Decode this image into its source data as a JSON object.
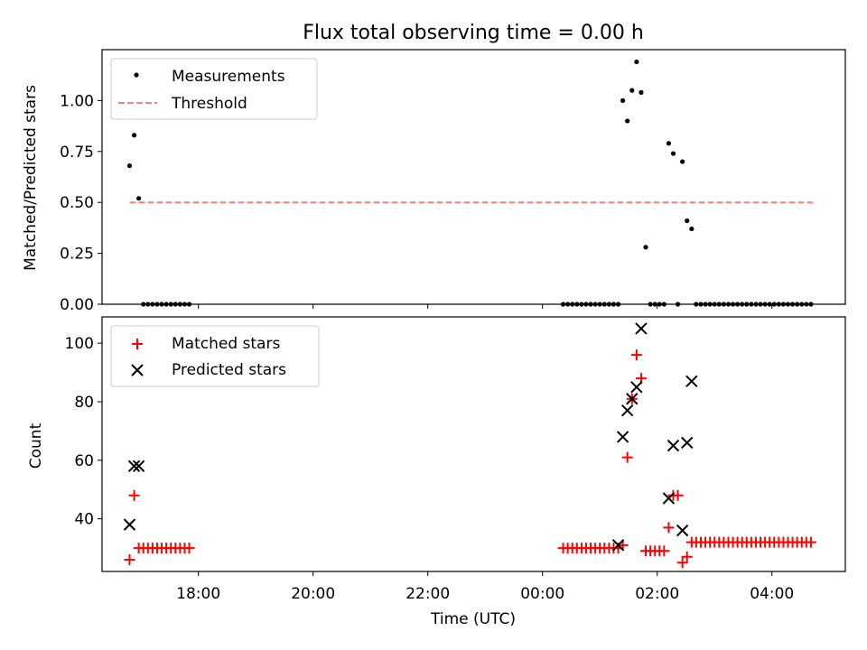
{
  "title": "Flux total observing time = 0.00 h",
  "xlabel": "Time (UTC)",
  "x_ticks": [
    "18:00",
    "20:00",
    "22:00",
    "00:00",
    "02:00",
    "04:00"
  ],
  "x_tick_hours": [
    18,
    20,
    22,
    24,
    26,
    28
  ],
  "x_range_hours": [
    16.32,
    29.28
  ],
  "colors": {
    "measurement": "#000000",
    "threshold": "#ff7f7f",
    "matched": "#ff0000",
    "predicted": "#000000"
  },
  "chart_data": [
    {
      "type": "scatter",
      "panel": "top",
      "ylabel": "Matched/Predicted stars",
      "ylim": [
        0,
        1.25
      ],
      "y_ticks": [
        "0.00",
        "0.25",
        "0.50",
        "0.75",
        "1.00"
      ],
      "y_tick_values": [
        0,
        0.25,
        0.5,
        0.75,
        1.0
      ],
      "legend": {
        "placement": "top-left",
        "entries": [
          "Measurements",
          "Threshold"
        ]
      },
      "threshold": {
        "name": "Threshold",
        "y": 0.5,
        "x": [
          16.8,
          28.72
        ]
      },
      "series": [
        {
          "name": "Measurements",
          "marker": "dot",
          "x": [
            16.8,
            16.88,
            16.96,
            17.04,
            17.12,
            17.2,
            17.28,
            17.36,
            17.44,
            17.52,
            17.6,
            17.68,
            17.76,
            17.84,
            24.36,
            24.44,
            24.52,
            24.6,
            24.68,
            24.76,
            24.84,
            24.92,
            25.0,
            25.08,
            25.16,
            25.24,
            25.32,
            25.4,
            25.48,
            25.56,
            25.64,
            25.72,
            25.8,
            25.88,
            25.96,
            26.04,
            26.12,
            26.2,
            26.28,
            26.36,
            26.44,
            26.52,
            26.6,
            26.68,
            26.76,
            26.84,
            26.92,
            27.0,
            27.08,
            27.16,
            27.24,
            27.32,
            27.4,
            27.48,
            27.56,
            27.64,
            27.72,
            27.8,
            27.88,
            27.96,
            28.04,
            28.12,
            28.2,
            28.28,
            28.36,
            28.44,
            28.52,
            28.6,
            28.68
          ],
          "y": [
            0.68,
            0.83,
            0.52,
            0,
            0,
            0,
            0,
            0,
            0,
            0,
            0,
            0,
            0,
            0,
            0,
            0,
            0,
            0,
            0,
            0,
            0,
            0,
            0,
            0,
            0,
            0,
            0,
            1.0,
            0.9,
            1.05,
            1.19,
            1.04,
            0.28,
            0,
            0,
            0,
            0,
            0.79,
            0.74,
            0,
            0.7,
            0.41,
            0.37,
            0,
            0,
            0,
            0,
            0,
            0,
            0,
            0,
            0,
            0,
            0,
            0,
            0,
            0,
            0,
            0,
            0,
            0,
            0,
            0,
            0,
            0,
            0,
            0,
            0,
            0
          ]
        }
      ]
    },
    {
      "type": "scatter",
      "panel": "bottom",
      "ylabel": "Count",
      "ylim": [
        22,
        109
      ],
      "y_ticks": [
        "40",
        "60",
        "80",
        "100"
      ],
      "y_tick_values": [
        40,
        60,
        80,
        100
      ],
      "legend": {
        "placement": "top-left",
        "entries": [
          "Matched stars",
          "Predicted stars"
        ]
      },
      "series": [
        {
          "name": "Matched stars",
          "marker": "plus",
          "x": [
            16.8,
            16.88,
            16.96,
            17.04,
            17.12,
            17.2,
            17.28,
            17.36,
            17.44,
            17.52,
            17.6,
            17.68,
            17.76,
            17.84,
            24.36,
            24.44,
            24.52,
            24.6,
            24.68,
            24.76,
            24.84,
            24.92,
            25.0,
            25.08,
            25.16,
            25.24,
            25.32,
            25.4,
            25.48,
            25.56,
            25.64,
            25.72,
            25.8,
            25.88,
            25.96,
            26.04,
            26.12,
            26.2,
            26.28,
            26.36,
            26.44,
            26.52,
            26.6,
            26.68,
            26.76,
            26.84,
            26.92,
            27.0,
            27.08,
            27.16,
            27.24,
            27.32,
            27.4,
            27.48,
            27.56,
            27.64,
            27.72,
            27.8,
            27.88,
            27.96,
            28.04,
            28.12,
            28.2,
            28.28,
            28.36,
            28.44,
            28.52,
            28.6,
            28.68
          ],
          "y": [
            26,
            48,
            30,
            30,
            30,
            30,
            30,
            30,
            30,
            30,
            30,
            30,
            30,
            30,
            30,
            30,
            30,
            30,
            30,
            30,
            30,
            30,
            30,
            30,
            30,
            30,
            30,
            31,
            61,
            81,
            96,
            88,
            29,
            29,
            29,
            29,
            29,
            37,
            48,
            48,
            25,
            27,
            32,
            32,
            32,
            32,
            32,
            32,
            32,
            32,
            32,
            32,
            32,
            32,
            32,
            32,
            32,
            32,
            32,
            32,
            32,
            32,
            32,
            32,
            32,
            32,
            32,
            32,
            32
          ]
        },
        {
          "name": "Predicted stars",
          "marker": "x",
          "x": [
            16.8,
            16.88,
            16.96,
            25.32,
            25.4,
            25.48,
            25.56,
            25.64,
            25.72,
            26.2,
            26.28,
            26.44,
            26.52,
            26.6
          ],
          "y": [
            38,
            58,
            58,
            31,
            68,
            77,
            81,
            85,
            105,
            47,
            65,
            36,
            66,
            87
          ]
        }
      ]
    }
  ]
}
